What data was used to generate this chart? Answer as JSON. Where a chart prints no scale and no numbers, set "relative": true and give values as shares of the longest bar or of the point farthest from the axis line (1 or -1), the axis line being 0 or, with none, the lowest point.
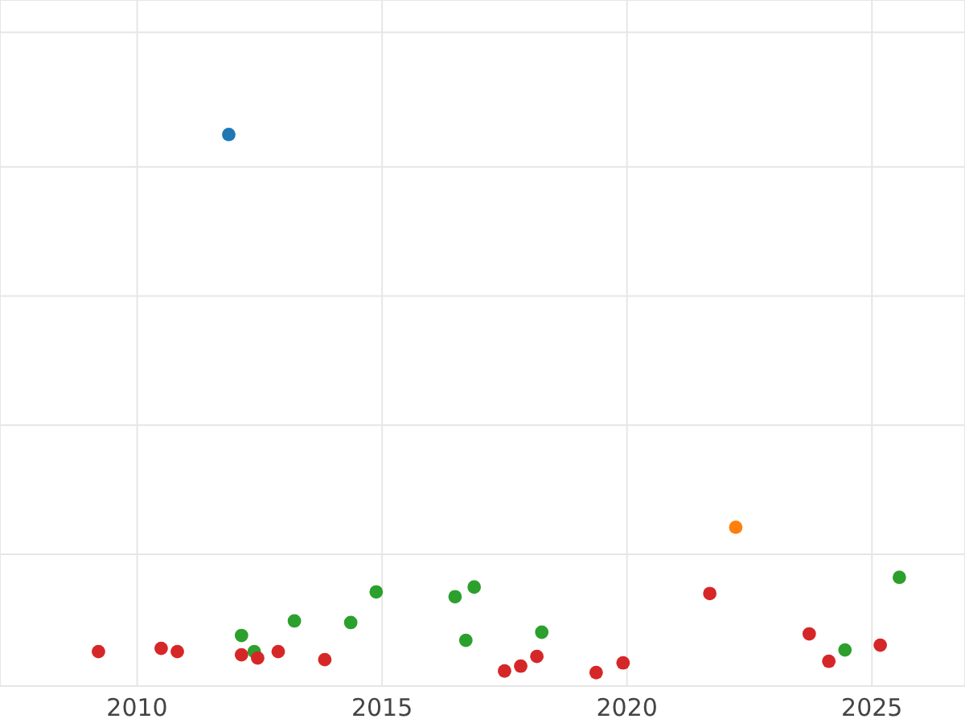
{
  "chart_data": {
    "type": "scatter",
    "relative": true,
    "grid": true,
    "marker": "circle",
    "xlim": [
      2007.2,
      2026.9
    ],
    "xticks": [
      2010,
      2015,
      2020,
      2025
    ],
    "series": [
      {
        "color": "#1f77b4",
        "x": [
          2011.87
        ],
        "values": [
          1
        ]
      },
      {
        "color": "#ff7f0e",
        "x": [
          2022.22
        ],
        "values": [
          0.27
        ]
      },
      {
        "color": "#2ca02c",
        "x": [
          2012.13,
          2012.39,
          2013.21,
          2014.36,
          2014.88,
          2016.49,
          2016.71,
          2016.88,
          2018.26,
          2024.45,
          2025.56
        ],
        "values": [
          0.069,
          0.039,
          0.096,
          0.093,
          0.15,
          0.141,
          0.06,
          0.159,
          0.075,
          0.042,
          0.177
        ]
      },
      {
        "color": "#d62728",
        "x": [
          2009.21,
          2010.49,
          2010.82,
          2012.13,
          2012.46,
          2012.88,
          2013.83,
          2017.5,
          2017.83,
          2018.16,
          2019.37,
          2019.92,
          2021.69,
          2023.72,
          2024.12,
          2025.17
        ],
        "values": [
          0.039,
          0.045,
          0.039,
          0.033,
          0.027,
          0.039,
          0.024,
          0.003,
          0.012,
          0.03,
          0,
          0.018,
          0.147,
          0.072,
          0.021,
          0.051
        ]
      }
    ]
  }
}
